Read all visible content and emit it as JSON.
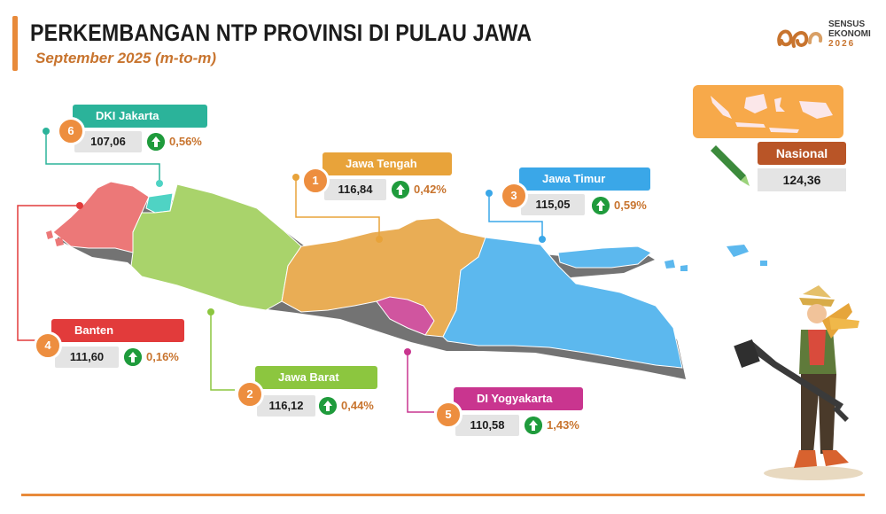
{
  "header": {
    "title": "PERKEMBANGAN NTP PROVINSI DI PULAU JAWA",
    "subtitle": "September 2025 (m-to-m)"
  },
  "logo": {
    "line1": "SENSUS",
    "line2": "EKONOMI",
    "line3": "2026"
  },
  "provinces": [
    {
      "rank": "6",
      "name": "DKI Jakarta",
      "value": "107,06",
      "change": "0,56%",
      "trend": "up",
      "color": "#2bb39a"
    },
    {
      "rank": "1",
      "name": "Jawa Tengah",
      "value": "116,84",
      "change": "0,42%",
      "trend": "up",
      "color": "#e8a33a"
    },
    {
      "rank": "3",
      "name": "Jawa Timur",
      "value": "115,05",
      "change": "0,59%",
      "trend": "up",
      "color": "#3aa7e8"
    },
    {
      "rank": "4",
      "name": "Banten",
      "value": "111,60",
      "change": "0,16%",
      "trend": "up",
      "color": "#e23b3b"
    },
    {
      "rank": "2",
      "name": "Jawa Barat",
      "value": "116,12",
      "change": "0,44%",
      "trend": "up",
      "color": "#8cc63f"
    },
    {
      "rank": "5",
      "name": "DI Yogyakarta",
      "value": "110,58",
      "change": "1,43%",
      "trend": "up",
      "color": "#c9358f"
    }
  ],
  "nasional": {
    "label": "Nasional",
    "value": "124,36"
  },
  "colors": {
    "accent": "#e88a3a",
    "up": "#1f9b3c",
    "map_banten": "#ec7878",
    "map_jakarta": "#4fd3c4",
    "map_jabar": "#a9d36b",
    "map_jateng": "#e9ad55",
    "map_diy": "#d0559f",
    "map_jatim": "#5cb8ee"
  }
}
